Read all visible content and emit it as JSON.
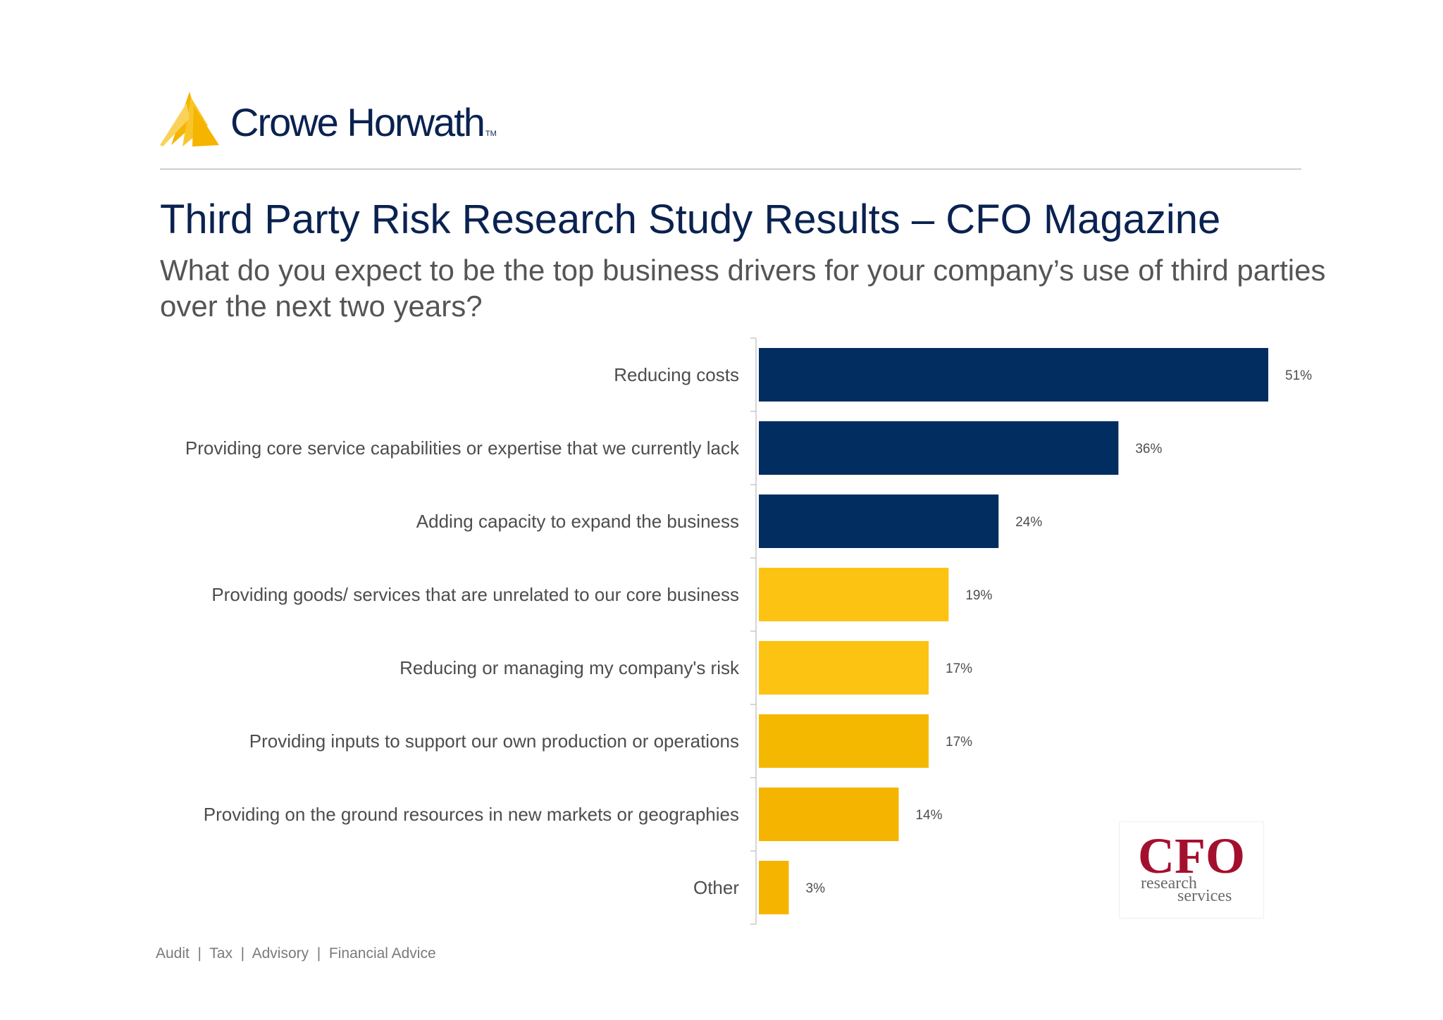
{
  "header": {
    "brand_name": "Crowe Horwath",
    "brand_tm": "TM",
    "brand_color": "#0a2250",
    "accent_color": "#f5b400"
  },
  "title": "Third Party Risk Research Study Results – CFO Magazine",
  "subtitle": "What do you expect to be the top business drivers for your company’s use of third parties over the next two years?",
  "footer": "Audit  |  Tax  |  Advisory  |  Financial Advice",
  "cfo_logo": {
    "top": "CFO",
    "line1": "research",
    "line2": "services"
  },
  "chart_data": {
    "type": "bar",
    "orientation": "horizontal",
    "categories": [
      "Reducing costs",
      "Providing core service capabilities or expertise that we currently lack",
      "Adding capacity to expand the business",
      "Providing goods/ services that are unrelated to our core business",
      "Reducing or managing my company's risk",
      "Providing inputs to support our own production or operations",
      "Providing on the ground resources in new markets or geographies",
      "Other"
    ],
    "values": [
      51,
      36,
      24,
      19,
      17,
      17,
      14,
      3
    ],
    "value_labels": [
      "51%",
      "36%",
      "24%",
      "19%",
      "17%",
      "17%",
      "14%",
      "3%"
    ],
    "bar_colors": [
      "#022d60",
      "#022d60",
      "#022d60",
      "#fcc313",
      "#fcc313",
      "#f5b800",
      "#f5b400",
      "#f5b400"
    ],
    "xlim": [
      0,
      51
    ],
    "grid": false,
    "legend": "none"
  }
}
